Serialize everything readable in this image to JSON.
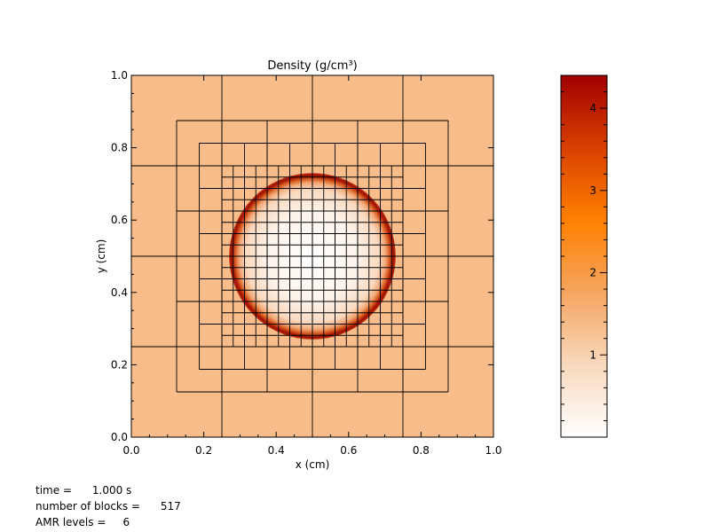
{
  "chart_data": {
    "type": "heatmap",
    "title": "Density (g/cm³)",
    "xlabel": "x (cm)",
    "ylabel": "y (cm)",
    "xlim": [
      0.0,
      1.0
    ],
    "ylim": [
      0.0,
      1.0
    ],
    "x_ticks": [
      "0.0",
      "0.2",
      "0.4",
      "0.6",
      "0.8",
      "1.0"
    ],
    "y_ticks": [
      "0.0",
      "0.2",
      "0.4",
      "0.6",
      "0.8",
      "1.0"
    ],
    "colorbar": {
      "range": [
        0.0,
        4.4
      ],
      "ticks": [
        "1",
        "2",
        "3",
        "4"
      ],
      "tick_values": [
        1,
        2,
        3,
        4
      ],
      "colors": [
        "#ffffff",
        "#f8d9bd",
        "#f5a560",
        "#ff8000",
        "#d84000",
        "#a00000"
      ]
    },
    "background_density": 0.9,
    "sphere": {
      "center_x": 0.5,
      "center_y": 0.5,
      "radius": 0.22,
      "interior_density_center": 0.0,
      "shell_peak_density": 4.3
    },
    "amr_grid": {
      "level_sizes": [
        0.25,
        0.125,
        0.0625,
        0.03125
      ],
      "level_ranges": [
        [
          0.0,
          1.0
        ],
        [
          0.125,
          0.875
        ],
        [
          0.1875,
          0.8125
        ],
        [
          0.25,
          0.75
        ]
      ]
    }
  },
  "info": {
    "time_label": "time =",
    "time_value": "1.000 s",
    "blocks_label": "number of blocks =",
    "blocks_value": "517",
    "levels_label": "AMR levels =",
    "levels_value": "6"
  }
}
